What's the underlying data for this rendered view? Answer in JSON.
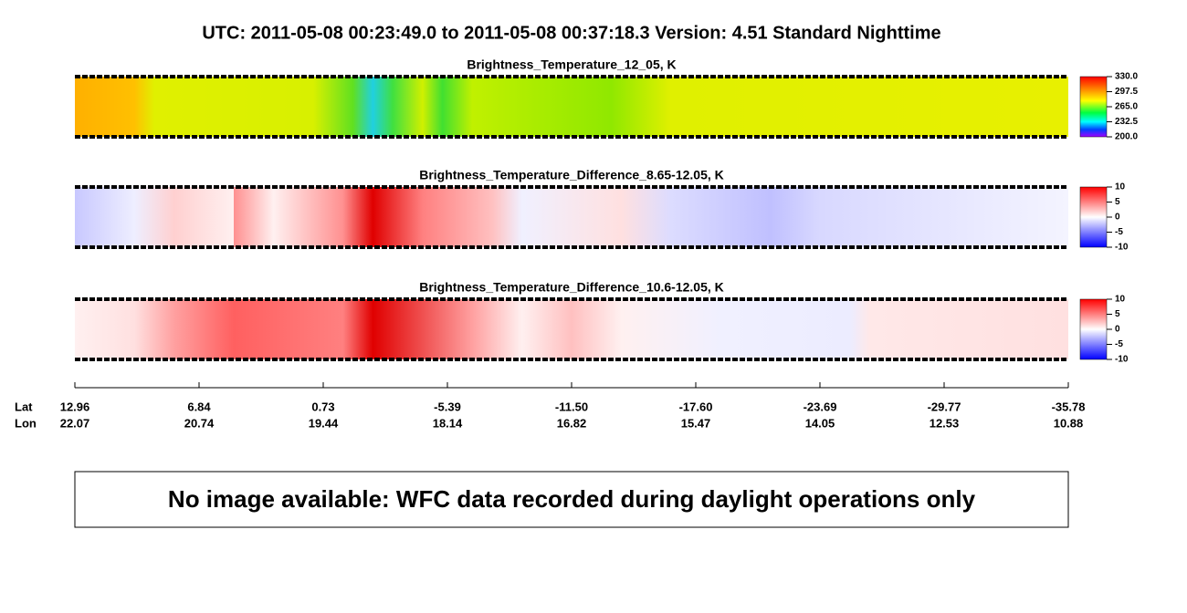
{
  "header": {
    "title": "UTC:  2011-05-08   00:23:49.0  to  2011-05-08   00:37:18.3    Version: 4.51  Standard Nighttime"
  },
  "panels": [
    {
      "title": "Brightness_Temperature_12_05, K",
      "colorbar_ticks": [
        "330.0",
        "297.5",
        "265.0",
        "232.5",
        "200.0"
      ]
    },
    {
      "title": "Brightness_Temperature_Difference_8.65-12.05, K",
      "colorbar_ticks": [
        "10",
        "5",
        "0",
        "-5",
        "-10"
      ]
    },
    {
      "title": "Brightness_Temperature_Difference_10.6-12.05, K",
      "colorbar_ticks": [
        "10",
        "5",
        "0",
        "-5",
        "-10"
      ]
    }
  ],
  "axis": {
    "lat_label": "Lat",
    "lon_label": "Lon",
    "lat": [
      "12.96",
      "6.84",
      "0.73",
      "-5.39",
      "-11.50",
      "-17.60",
      "-23.69",
      "-29.77",
      "-35.78"
    ],
    "lon": [
      "22.07",
      "20.74",
      "19.44",
      "18.14",
      "16.82",
      "15.47",
      "14.05",
      "12.53",
      "10.88"
    ]
  },
  "message": "No image available: WFC data recorded during daylight operations only"
}
